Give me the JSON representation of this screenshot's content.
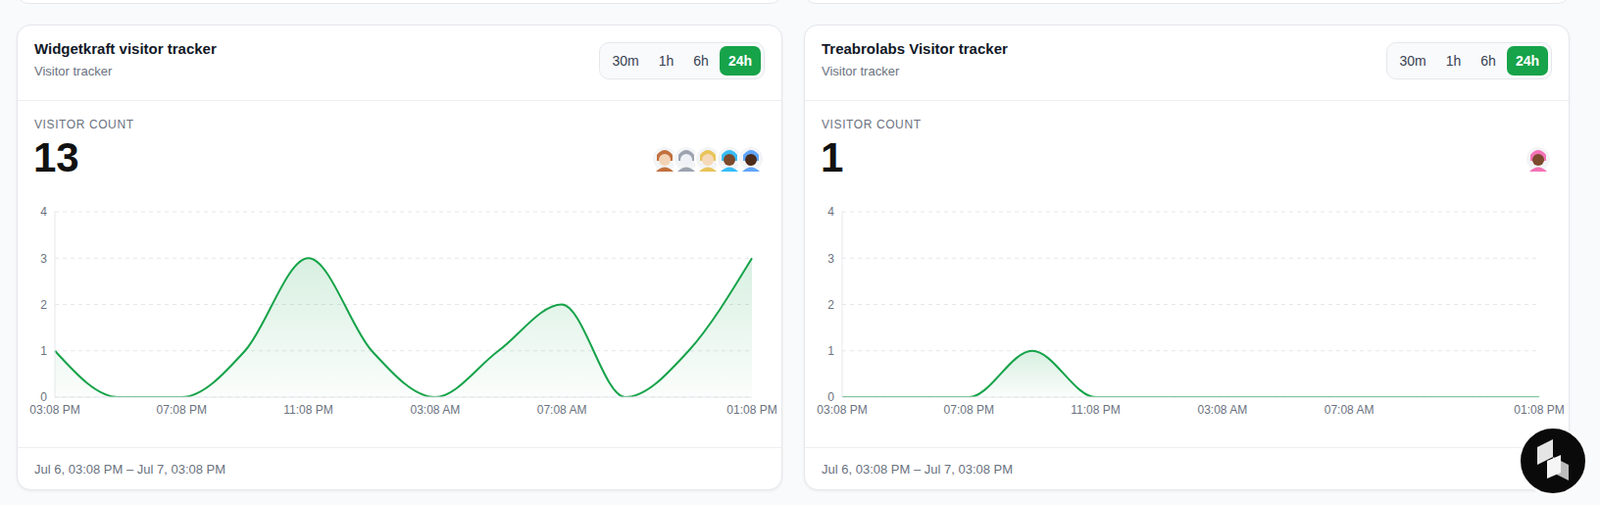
{
  "chart_data": [
    {
      "type": "area",
      "title": "Widgetkraft visitor tracker",
      "subtitle": "Visitor tracker",
      "range_options": [
        "30m",
        "1h",
        "6h",
        "24h"
      ],
      "selected_range": "24h",
      "metric_label": "VISITOR COUNT",
      "metric_value": 13,
      "footer": "Jul 6, 03:08 PM – Jul 7, 03:08 PM",
      "categories": [
        "03:08 PM",
        null,
        "07:08 PM",
        null,
        "11:08 PM",
        null,
        "03:08 AM",
        null,
        "07:08 AM",
        null,
        null,
        "01:08 PM"
      ],
      "values": [
        1,
        0,
        0,
        1,
        3,
        1,
        0,
        1,
        2,
        0,
        1,
        3
      ],
      "color": "#16a34a",
      "ylim": [
        0,
        4
      ],
      "yticks": [
        0,
        1,
        2,
        3,
        4
      ],
      "grid": true
    },
    {
      "type": "area",
      "title": "Treabrolabs Visitor tracker",
      "subtitle": "Visitor tracker",
      "range_options": [
        "30m",
        "1h",
        "6h",
        "24h"
      ],
      "selected_range": "24h",
      "metric_label": "VISITOR COUNT",
      "metric_value": 1,
      "footer": "Jul 6, 03:08 PM – Jul 7, 03:08 PM",
      "categories": [
        "03:08 PM",
        null,
        "07:08 PM",
        null,
        "11:08 PM",
        null,
        "03:08 AM",
        null,
        "07:08 AM",
        null,
        null,
        "01:08 PM"
      ],
      "values": [
        0,
        0,
        0,
        1,
        0,
        0,
        0,
        0,
        0,
        0,
        0,
        0
      ],
      "color": "#16a34a",
      "ylim": [
        0,
        4
      ],
      "yticks": [
        0,
        1,
        2,
        3,
        4
      ],
      "grid": true
    }
  ]
}
